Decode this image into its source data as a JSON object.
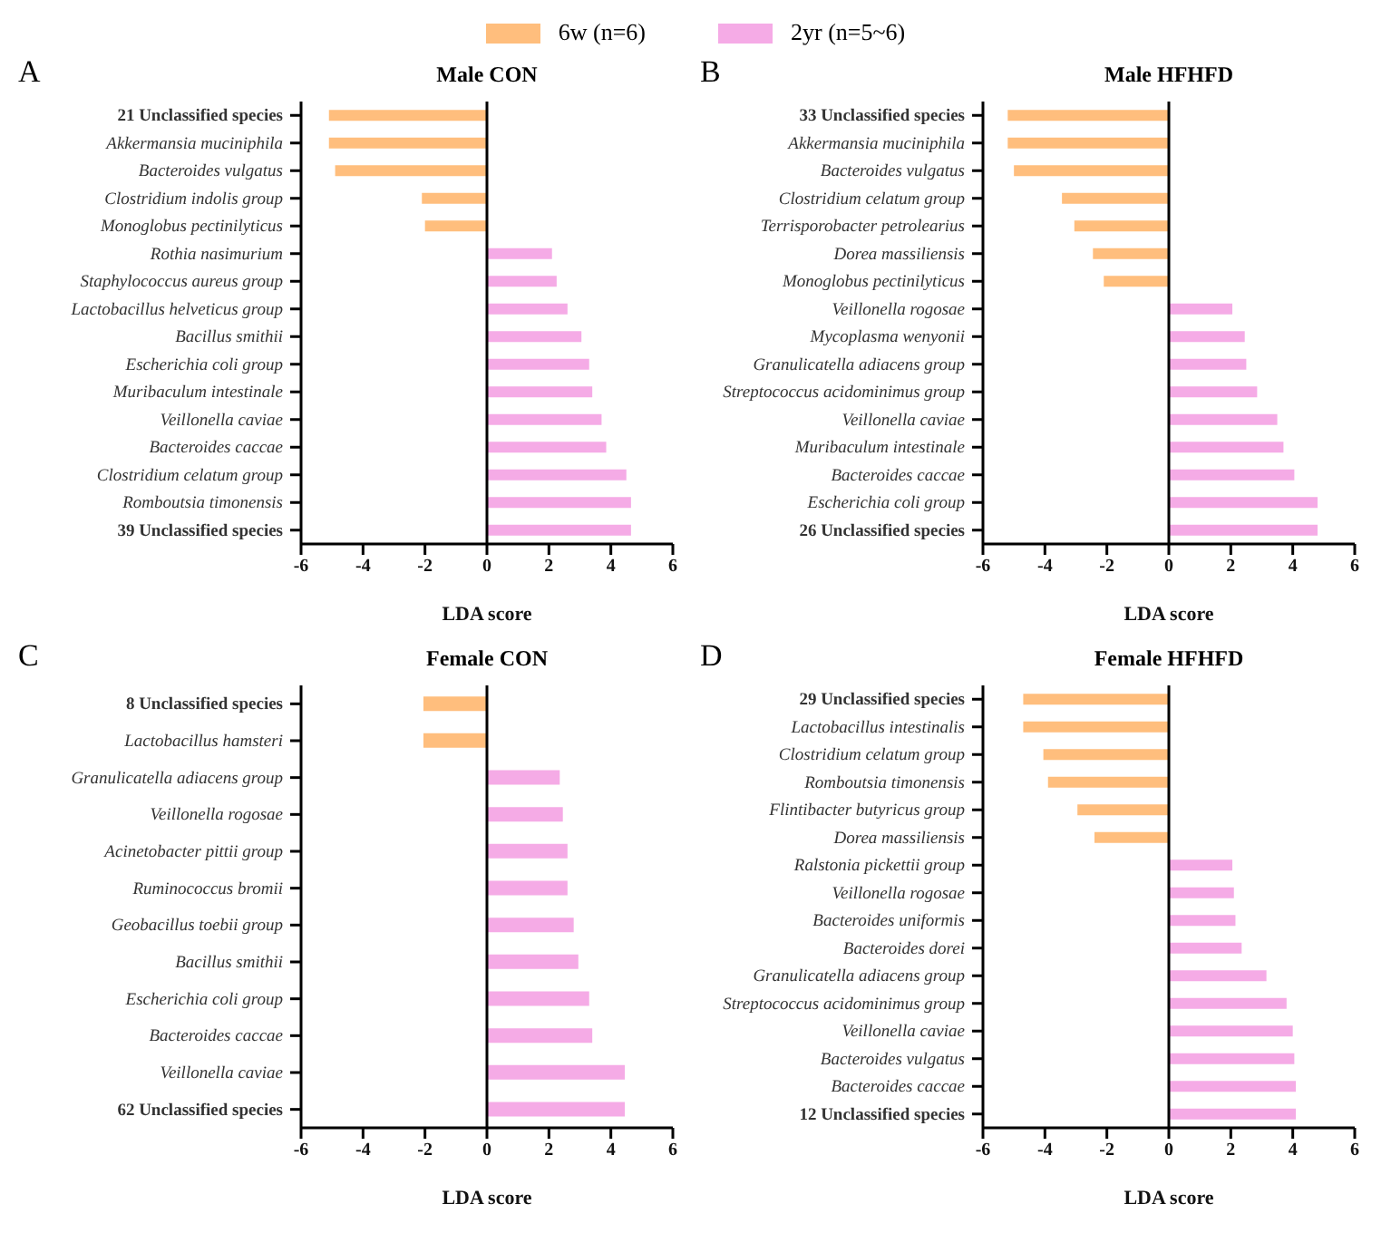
{
  "chart_data": [
    {
      "type": "bar",
      "orientation": "horizontal",
      "title": "Male CON",
      "xlabel": "LDA score",
      "annotations": [
        "A"
      ],
      "legend": "top",
      "xlim": [
        -6,
        6
      ],
      "xticks": [
        -6,
        -4,
        -2,
        0,
        2,
        4,
        6
      ],
      "ref_lines": [
        {
          "axis": "x",
          "value": 0,
          "color": "#000000"
        }
      ],
      "categories": [
        "21 Unclassified species",
        "Akkermansia muciniphila",
        "Bacteroides vulgatus",
        "Clostridium indolis group",
        "Monoglobus pectinilyticus",
        "Rothia nasimurium",
        "Staphylococcus aureus group",
        "Lactobacillus helveticus group",
        "Bacillus smithii",
        "Escherichia coli group",
        "Muribaculum intestinale",
        "Veillonella caviae",
        "Bacteroides caccae",
        "Clostridium celatum group",
        "Romboutsia timonensis",
        "39 Unclassified species"
      ],
      "series": [
        {
          "name": "6w (n=6)",
          "color": "#ffbe7d",
          "values": [
            -5.1,
            -5.1,
            -4.9,
            -2.1,
            -2.0,
            null,
            null,
            null,
            null,
            null,
            null,
            null,
            null,
            null,
            null,
            null
          ]
        },
        {
          "name": "2yr (n=5~6)",
          "color": "#f5abe6",
          "values": [
            null,
            null,
            null,
            null,
            null,
            2.1,
            2.25,
            2.6,
            3.05,
            3.3,
            3.4,
            3.7,
            3.85,
            4.5,
            4.65,
            4.65
          ]
        }
      ]
    },
    {
      "type": "bar",
      "orientation": "horizontal",
      "title": "Male HFHFD",
      "xlabel": "LDA score",
      "annotations": [
        "B"
      ],
      "xlim": [
        -6,
        6
      ],
      "xticks": [
        -6,
        -4,
        -2,
        0,
        2,
        4,
        6
      ],
      "ref_lines": [
        {
          "axis": "x",
          "value": 0,
          "color": "#000000"
        }
      ],
      "categories": [
        "33 Unclassified species",
        "Akkermansia muciniphila",
        "Bacteroides vulgatus",
        "Clostridium celatum group",
        "Terrisporobacter petrolearius",
        "Dorea massiliensis",
        "Monoglobus pectinilyticus",
        "Veillonella rogosae",
        "Mycoplasma wenyonii",
        "Granulicatella adiacens group",
        "Streptococcus acidominimus group",
        "Veillonella caviae",
        "Muribaculum intestinale",
        "Bacteroides caccae",
        "Escherichia coli group",
        "26 Unclassified species"
      ],
      "series": [
        {
          "color": "#ffbe7d",
          "values": [
            -5.2,
            -5.2,
            -5.0,
            -3.45,
            -3.05,
            -2.45,
            -2.1,
            null,
            null,
            null,
            null,
            null,
            null,
            null,
            null,
            null
          ]
        },
        {
          "color": "#f5abe6",
          "values": [
            null,
            null,
            null,
            null,
            null,
            null,
            null,
            2.05,
            2.45,
            2.5,
            2.85,
            3.5,
            3.7,
            4.05,
            4.8,
            4.8
          ]
        }
      ]
    },
    {
      "type": "bar",
      "orientation": "horizontal",
      "title": "Female CON",
      "xlabel": "LDA score",
      "annotations": [
        "C"
      ],
      "xlim": [
        -6,
        6
      ],
      "xticks": [
        -6,
        -4,
        -2,
        0,
        2,
        4,
        6
      ],
      "ref_lines": [
        {
          "axis": "x",
          "value": 0,
          "color": "#000000"
        }
      ],
      "categories": [
        "8 Unclassified species",
        "Lactobacillus hamsteri",
        "Granulicatella adiacens group",
        "Veillonella rogosae",
        "Acinetobacter pittii group",
        "Ruminococcus bromii",
        "Geobacillus toebii group",
        "Bacillus smithii",
        "Escherichia coli group",
        "Bacteroides caccae",
        "Veillonella caviae",
        "62 Unclassified species"
      ],
      "series": [
        {
          "color": "#ffbe7d",
          "values": [
            -2.05,
            -2.05,
            null,
            null,
            null,
            null,
            null,
            null,
            null,
            null,
            null,
            null
          ]
        },
        {
          "color": "#f5abe6",
          "values": [
            null,
            null,
            2.35,
            2.45,
            2.6,
            2.6,
            2.8,
            2.95,
            3.3,
            3.4,
            4.45,
            4.45
          ]
        }
      ]
    },
    {
      "type": "bar",
      "orientation": "horizontal",
      "title": "Female HFHFD",
      "xlabel": "LDA score",
      "annotations": [
        "D"
      ],
      "xlim": [
        -6,
        6
      ],
      "xticks": [
        -6,
        -4,
        -2,
        0,
        2,
        4,
        6
      ],
      "ref_lines": [
        {
          "axis": "x",
          "value": 0,
          "color": "#000000"
        }
      ],
      "categories": [
        "29 Unclassified species",
        "Lactobacillus intestinalis",
        "Clostridium celatum group",
        "Romboutsia timonensis",
        "Flintibacter butyricus group",
        "Dorea massiliensis",
        "Ralstonia pickettii group",
        "Veillonella rogosae",
        "Bacteroides uniformis",
        "Bacteroides dorei",
        "Granulicatella adiacens group",
        "Streptococcus acidominimus group",
        "Veillonella caviae",
        "Bacteroides vulgatus",
        "Bacteroides caccae",
        "12 Unclassified species"
      ],
      "series": [
        {
          "color": "#ffbe7d",
          "values": [
            -4.7,
            -4.7,
            -4.05,
            -3.9,
            -2.95,
            -2.4,
            null,
            null,
            null,
            null,
            null,
            null,
            null,
            null,
            null,
            null
          ]
        },
        {
          "color": "#f5abe6",
          "values": [
            null,
            null,
            null,
            null,
            null,
            null,
            2.05,
            2.1,
            2.15,
            2.35,
            3.15,
            3.8,
            4.0,
            4.05,
            4.1,
            4.1
          ]
        }
      ]
    }
  ]
}
